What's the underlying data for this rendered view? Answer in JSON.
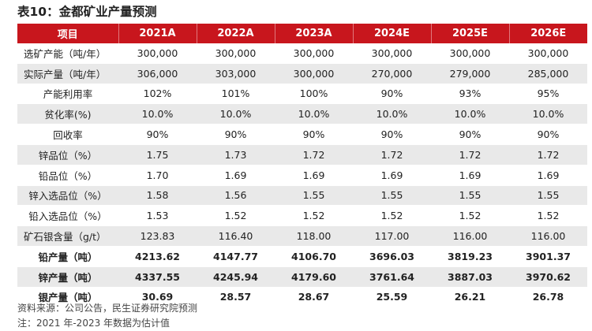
{
  "title": "表10：金都矿业产量预测",
  "header": [
    "项目",
    "2021A",
    "2022A",
    "2023A",
    "2024E",
    "2025E",
    "2026E"
  ],
  "rows": [
    {
      "label": "选矿产能（吨/年）",
      "values": [
        "300,000",
        "300,000",
        "300,000",
        "300,000",
        "300,000",
        "300,000"
      ]
    },
    {
      "label": "实际产量（吨/年）",
      "values": [
        "306,000",
        "303,000",
        "300,000",
        "270,000",
        "279,000",
        "285,000"
      ]
    },
    {
      "label": "产能利用率",
      "values": [
        "102%",
        "101%",
        "100%",
        "90%",
        "93%",
        "95%"
      ]
    },
    {
      "label": "贫化率(%)",
      "values": [
        "10.0%",
        "10.0%",
        "10.0%",
        "10.0%",
        "10.0%",
        "10.0%"
      ]
    },
    {
      "label": "回收率",
      "values": [
        "90%",
        "90%",
        "90%",
        "90%",
        "90%",
        "90%"
      ]
    },
    {
      "label": "锌品位（%）",
      "values": [
        "1.75",
        "1.73",
        "1.72",
        "1.72",
        "1.72",
        "1.72"
      ]
    },
    {
      "label": "铅品位（%）",
      "values": [
        "1.70",
        "1.69",
        "1.69",
        "1.69",
        "1.69",
        "1.69"
      ]
    },
    {
      "label": "锌入选品位（%）",
      "values": [
        "1.58",
        "1.56",
        "1.55",
        "1.55",
        "1.55",
        "1.55"
      ]
    },
    {
      "label": "铅入选品位（%）",
      "values": [
        "1.53",
        "1.52",
        "1.52",
        "1.52",
        "1.52",
        "1.52"
      ]
    },
    {
      "label": "矿石银含量（g/t）",
      "values": [
        "123.83",
        "116.40",
        "118.00",
        "117.00",
        "116.00",
        "116.00"
      ]
    },
    {
      "label": "铅产量（吨）",
      "values": [
        "4213.62",
        "4147.77",
        "4106.70",
        "3696.03",
        "3819.23",
        "3901.37"
      ]
    },
    {
      "label": "锌产量（吨）",
      "values": [
        "4337.55",
        "4245.94",
        "4179.60",
        "3761.64",
        "3887.03",
        "3970.62"
      ]
    },
    {
      "label": "银产量（吨）",
      "values": [
        "30.69",
        "28.57",
        "28.67",
        "25.59",
        "26.21",
        "26.78"
      ]
    }
  ],
  "source": "资料来源：公司公告，民生证券研究院预测",
  "note": "注：2021 年-2023 年数据为估计值"
}
